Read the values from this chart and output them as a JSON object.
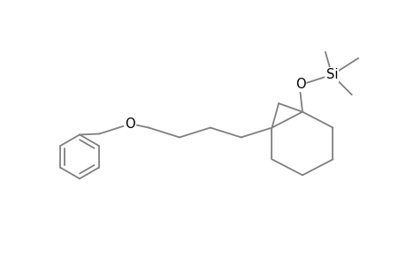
{
  "bg_color": "#ffffff",
  "line_color": "#808080",
  "text_color": "#000000",
  "line_width": 1.3,
  "font_size": 10.5,
  "xlim": [
    0,
    9.2
  ],
  "ylim": [
    0,
    6.0
  ]
}
